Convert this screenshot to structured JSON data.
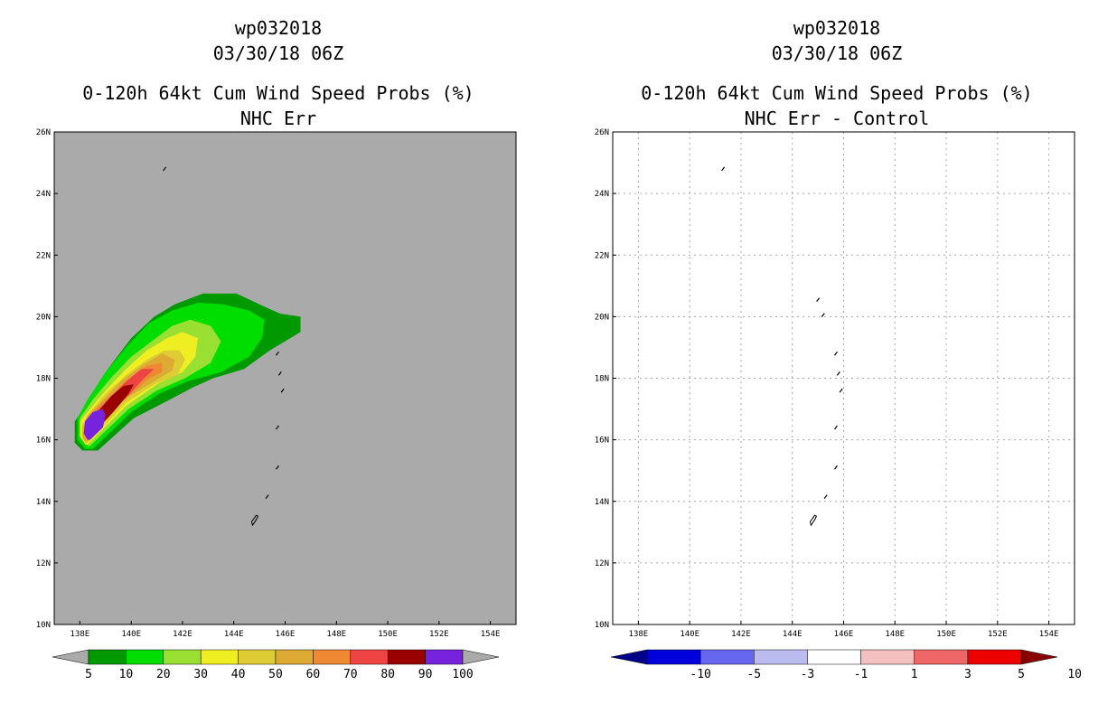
{
  "chart_data": [
    {
      "type": "heatmap",
      "storm_id": "wp032018",
      "datetime": "03/30/18 06Z",
      "title": "0-120h 64kt Cum Wind Speed Probs (%)",
      "subtitle": "NHC Err",
      "xlim": [
        137,
        155
      ],
      "ylim": [
        10,
        26
      ],
      "x_ticks": [
        "138E",
        "140E",
        "142E",
        "144E",
        "146E",
        "148E",
        "150E",
        "152E",
        "154E"
      ],
      "y_ticks": [
        "10N",
        "12N",
        "14N",
        "16N",
        "18N",
        "20N",
        "22N",
        "24N",
        "26N"
      ],
      "grid": false,
      "background_color": "#aaaaaa",
      "colorbar": {
        "labels": [
          "5",
          "10",
          "20",
          "30",
          "40",
          "50",
          "60",
          "70",
          "80",
          "90",
          "100"
        ],
        "colors": [
          "#009900",
          "#00dd00",
          "#99e033",
          "#eeee22",
          "#ddcc33",
          "#ddaa33",
          "#ee8833",
          "#ee4444",
          "#990000",
          "#7722dd"
        ],
        "end_color": "#aaaaaa"
      },
      "contours": [
        {
          "level": 5,
          "color": "#009900",
          "points": [
            [
              138.7,
              15.65
            ],
            [
              140.1,
              16.7
            ],
            [
              141.5,
              17.3
            ],
            [
              142.4,
              17.7
            ],
            [
              143.2,
              18.0
            ],
            [
              144.4,
              18.3
            ],
            [
              145.4,
              18.9
            ],
            [
              146.6,
              19.5
            ],
            [
              146.6,
              20.0
            ],
            [
              145.8,
              20.1
            ],
            [
              145.0,
              20.4
            ],
            [
              144.1,
              20.75
            ],
            [
              142.8,
              20.75
            ],
            [
              141.7,
              20.4
            ],
            [
              140.9,
              20.0
            ],
            [
              140.0,
              19.3
            ],
            [
              139.0,
              18.2
            ],
            [
              138.3,
              17.2
            ],
            [
              137.8,
              16.6
            ],
            [
              137.8,
              15.9
            ],
            [
              138.1,
              15.65
            ]
          ]
        },
        {
          "level": 10,
          "color": "#00dd00",
          "points": [
            [
              138.5,
              15.7
            ],
            [
              140.0,
              16.9
            ],
            [
              141.1,
              17.5
            ],
            [
              142.2,
              17.9
            ],
            [
              143.5,
              18.2
            ],
            [
              144.6,
              18.7
            ],
            [
              145.1,
              19.3
            ],
            [
              145.2,
              19.9
            ],
            [
              144.6,
              20.2
            ],
            [
              143.6,
              20.4
            ],
            [
              142.6,
              20.45
            ],
            [
              141.6,
              20.2
            ],
            [
              140.7,
              19.8
            ],
            [
              139.9,
              19.1
            ],
            [
              139.0,
              18.2
            ],
            [
              138.3,
              17.3
            ],
            [
              137.9,
              16.7
            ],
            [
              137.9,
              16.0
            ],
            [
              138.2,
              15.7
            ]
          ]
        },
        {
          "level": 20,
          "color": "#99e033",
          "points": [
            [
              138.4,
              15.8
            ],
            [
              139.9,
              17.0
            ],
            [
              141.0,
              17.6
            ],
            [
              142.1,
              18.0
            ],
            [
              143.1,
              18.5
            ],
            [
              143.5,
              19.2
            ],
            [
              143.1,
              19.7
            ],
            [
              142.3,
              19.9
            ],
            [
              141.6,
              19.7
            ],
            [
              140.8,
              19.2
            ],
            [
              140.0,
              18.7
            ],
            [
              139.2,
              18.0
            ],
            [
              138.5,
              17.3
            ],
            [
              138.0,
              16.7
            ],
            [
              138.0,
              16.1
            ],
            [
              138.3,
              15.8
            ]
          ]
        },
        {
          "level": 30,
          "color": "#eeee22",
          "points": [
            [
              138.3,
              15.85
            ],
            [
              139.8,
              17.1
            ],
            [
              141.0,
              17.8
            ],
            [
              142.0,
              18.2
            ],
            [
              142.5,
              18.7
            ],
            [
              142.6,
              19.3
            ],
            [
              142.0,
              19.5
            ],
            [
              141.4,
              19.3
            ],
            [
              140.6,
              18.9
            ],
            [
              139.8,
              18.3
            ],
            [
              139.0,
              17.6
            ],
            [
              138.4,
              17.0
            ],
            [
              138.0,
              16.6
            ],
            [
              138.0,
              16.1
            ],
            [
              138.2,
              15.85
            ]
          ]
        },
        {
          "level": 40,
          "color": "#ddcc33",
          "points": [
            [
              138.3,
              15.9
            ],
            [
              139.8,
              17.2
            ],
            [
              140.9,
              17.8
            ],
            [
              141.8,
              18.1
            ],
            [
              142.1,
              18.6
            ],
            [
              141.9,
              18.9
            ],
            [
              141.3,
              18.9
            ],
            [
              140.6,
              18.6
            ],
            [
              139.8,
              18.1
            ],
            [
              139.0,
              17.5
            ],
            [
              138.4,
              16.9
            ],
            [
              138.1,
              16.5
            ],
            [
              138.1,
              16.1
            ],
            [
              138.2,
              15.9
            ]
          ]
        },
        {
          "level": 50,
          "color": "#ddaa33",
          "points": [
            [
              138.3,
              15.95
            ],
            [
              139.7,
              17.3
            ],
            [
              140.9,
              17.9
            ],
            [
              141.6,
              18.25
            ],
            [
              141.7,
              18.6
            ],
            [
              141.2,
              18.8
            ],
            [
              140.4,
              18.4
            ],
            [
              139.6,
              17.9
            ],
            [
              138.9,
              17.3
            ],
            [
              138.3,
              16.8
            ],
            [
              138.1,
              16.4
            ],
            [
              138.1,
              16.1
            ],
            [
              138.2,
              15.95
            ]
          ]
        },
        {
          "level": 60,
          "color": "#ee8833",
          "points": [
            [
              138.3,
              16.0
            ],
            [
              139.6,
              17.2
            ],
            [
              140.7,
              18.0
            ],
            [
              141.2,
              18.2
            ],
            [
              141.2,
              18.5
            ],
            [
              140.6,
              18.4
            ],
            [
              139.8,
              17.9
            ],
            [
              139.0,
              17.3
            ],
            [
              138.4,
              16.8
            ],
            [
              138.2,
              16.4
            ],
            [
              138.2,
              16.1
            ],
            [
              138.3,
              16.0
            ]
          ]
        },
        {
          "level": 70,
          "color": "#ee4444",
          "points": [
            [
              138.35,
              16.05
            ],
            [
              139.5,
              17.1
            ],
            [
              140.5,
              18.0
            ],
            [
              140.9,
              18.3
            ],
            [
              140.4,
              18.3
            ],
            [
              139.8,
              17.9
            ],
            [
              139.1,
              17.3
            ],
            [
              138.5,
              16.8
            ],
            [
              138.25,
              16.4
            ],
            [
              138.25,
              16.1
            ]
          ]
        },
        {
          "level": 80,
          "color": "#990000",
          "points": [
            [
              138.4,
              16.1
            ],
            [
              139.3,
              16.9
            ],
            [
              139.9,
              17.5
            ],
            [
              140.1,
              17.8
            ],
            [
              139.7,
              17.75
            ],
            [
              139.2,
              17.4
            ],
            [
              138.7,
              16.9
            ],
            [
              138.4,
              16.5
            ],
            [
              138.3,
              16.2
            ]
          ]
        },
        {
          "level": 90,
          "color": "#7722dd",
          "points": [
            [
              138.4,
              16.0
            ],
            [
              138.9,
              16.4
            ],
            [
              139.0,
              16.8
            ],
            [
              138.9,
              17.0
            ],
            [
              138.5,
              16.9
            ],
            [
              138.2,
              16.6
            ],
            [
              138.15,
              16.2
            ],
            [
              138.3,
              16.0
            ]
          ]
        }
      ],
      "islands": [
        [
          141.3,
          24.8
        ],
        [
          145.7,
          18.8
        ],
        [
          145.8,
          18.15
        ],
        [
          145.9,
          17.6
        ],
        [
          145.7,
          16.4
        ],
        [
          145.7,
          15.1
        ],
        [
          145.3,
          14.15
        ],
        [
          144.8,
          13.4
        ]
      ]
    },
    {
      "type": "heatmap",
      "storm_id": "wp032018",
      "datetime": "03/30/18 06Z",
      "title": "0-120h 64kt Cum Wind Speed Probs (%)",
      "subtitle": "NHC Err - Control",
      "xlim": [
        137,
        155
      ],
      "ylim": [
        10,
        26
      ],
      "x_ticks": [
        "138E",
        "140E",
        "142E",
        "144E",
        "146E",
        "148E",
        "150E",
        "152E",
        "154E"
      ],
      "y_ticks": [
        "10N",
        "12N",
        "14N",
        "16N",
        "18N",
        "20N",
        "22N",
        "24N",
        "26N"
      ],
      "grid": true,
      "background_color": "#ffffff",
      "colorbar": {
        "labels": [
          "-10",
          "-5",
          "-3",
          "-1",
          "1",
          "3",
          "5",
          "10"
        ],
        "colors": [
          "#0000dd",
          "#6666ee",
          "#bbbbf0",
          "#ffffff",
          "#f5c0c0",
          "#ee6666",
          "#ee0000"
        ],
        "end_left_color": "#000088",
        "end_right_color": "#880000"
      },
      "contours": [],
      "islands": [
        [
          141.3,
          24.8
        ],
        [
          145.0,
          20.55
        ],
        [
          145.2,
          20.05
        ],
        [
          145.7,
          18.8
        ],
        [
          145.8,
          18.15
        ],
        [
          145.9,
          17.6
        ],
        [
          145.7,
          16.4
        ],
        [
          145.7,
          15.1
        ],
        [
          145.3,
          14.15
        ],
        [
          144.8,
          13.4
        ]
      ]
    }
  ]
}
